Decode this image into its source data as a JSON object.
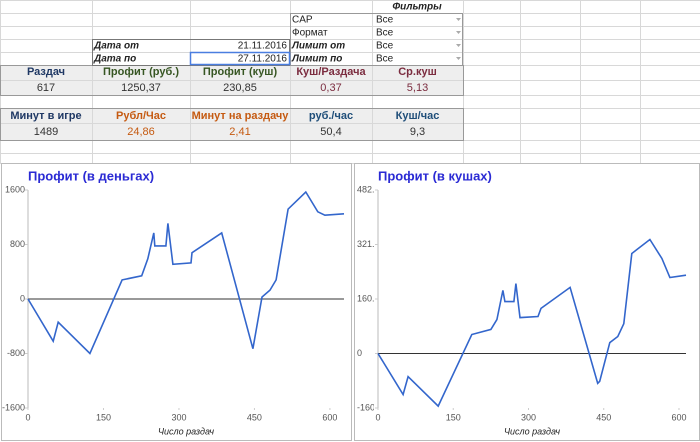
{
  "filters": {
    "title": "Фильтры",
    "items": [
      {
        "label": "CAP",
        "value": "Все"
      },
      {
        "label": "Формат",
        "value": "Все"
      },
      {
        "label": "Лимит от",
        "value": "Все"
      },
      {
        "label": "Лимит по",
        "value": "Все"
      }
    ]
  },
  "dates": [
    {
      "label": "Дата от",
      "value": "21.11.2016"
    },
    {
      "label": "Дата по",
      "value": "27.11.2016"
    }
  ],
  "stats": [
    {
      "headers": [
        "Раздач",
        "Профит (руб.)",
        "Профит (куш)",
        "Куш/Раздача",
        "Ср.куш"
      ],
      "values": [
        "617",
        "1250,37",
        "230,85",
        "0,37",
        "5,13"
      ]
    },
    {
      "headers": [
        "Минут в игре",
        "Рубл/Час",
        "Минут на раздачу",
        "руб./час",
        "Куш/час"
      ],
      "values": [
        "1489",
        "24,86",
        "2,41",
        "50,4",
        "9,3"
      ]
    }
  ],
  "chart_data": [
    {
      "type": "line",
      "title": "Профит (в деньгах)",
      "x_label": "Число раздач",
      "color": "#3366cc",
      "x": [
        0,
        50,
        60,
        123,
        187,
        226,
        238,
        250,
        252,
        274,
        278,
        288,
        324,
        326,
        385,
        447,
        465,
        481,
        493,
        517,
        552,
        576,
        590,
        628
      ],
      "values": [
        0,
        -620,
        -340,
        -800,
        280,
        340,
        590,
        970,
        780,
        780,
        1110,
        510,
        530,
        680,
        970,
        -730,
        30,
        130,
        280,
        1320,
        1570,
        1280,
        1230,
        1250
      ],
      "xlim": [
        0,
        628
      ],
      "ylim": [
        -1600,
        1600
      ],
      "xticks": [
        0,
        150,
        300,
        450,
        600
      ],
      "yticks": [
        -1600,
        -800,
        0,
        800,
        1600
      ]
    },
    {
      "type": "line",
      "title": "Профит (в кушах)",
      "x_label": "Число раздач",
      "color": "#3366cc",
      "x": [
        0,
        50,
        60,
        120,
        187,
        225,
        237,
        249,
        253,
        271,
        275,
        283,
        319,
        325,
        383,
        438,
        442,
        462,
        478,
        490,
        506,
        542,
        566,
        582,
        614
      ],
      "values": [
        0,
        -121,
        -68,
        -155,
        56,
        71,
        100,
        186,
        153,
        153,
        206,
        106,
        109,
        133,
        195,
        -88,
        -82,
        32,
        50,
        88,
        295,
        336,
        280,
        224,
        231
      ],
      "xlim": [
        0,
        614
      ],
      "ylim": [
        -160.7,
        482.1
      ],
      "xticks": [
        0,
        150,
        300,
        450,
        600
      ],
      "yticks": [
        -160.7,
        0,
        160.7,
        321.4,
        482.1
      ]
    }
  ]
}
